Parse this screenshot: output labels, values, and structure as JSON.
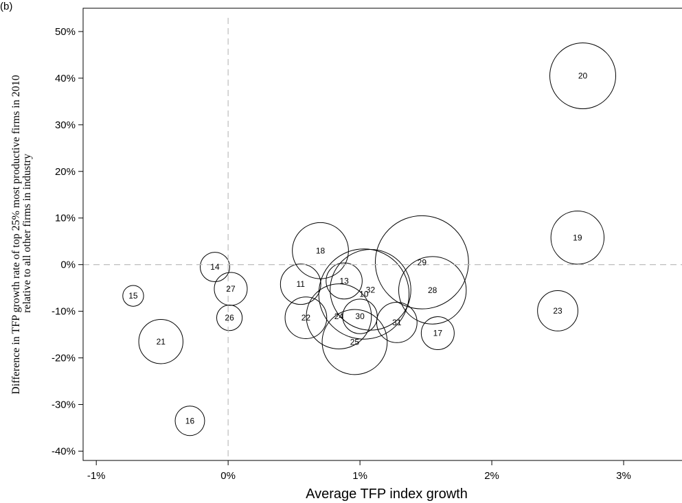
{
  "panel_label": "(b)",
  "chart_data": {
    "type": "scatter",
    "title": "",
    "xlabel": "Average TFP index growth",
    "ylabel_lines": [
      "Difference in TFP growth rate of top 25% most productive firms in 2010",
      "relative to all other firms in industry"
    ],
    "xlim": [
      -1.1,
      3.5
    ],
    "ylim": [
      -42,
      55
    ],
    "x_ticks": [
      -1,
      0,
      1,
      2,
      3
    ],
    "x_tick_labels": [
      "-1%",
      "0%",
      "1%",
      "2%",
      "3%"
    ],
    "y_ticks": [
      -40,
      -30,
      -20,
      -10,
      0,
      10,
      20,
      30,
      40,
      50
    ],
    "y_tick_labels": [
      "-40%",
      "-30%",
      "-20%",
      "-10%",
      "0%",
      "10%",
      "20%",
      "30%",
      "40%",
      "50%"
    ],
    "reference_lines": {
      "x": 0,
      "y": 0,
      "style": "dashed"
    },
    "grid": false,
    "bubble_size_variable_shown": false,
    "points": [
      {
        "label": "10",
        "x": 1.03,
        "y": -6.3,
        "size": 7.5
      },
      {
        "label": "11",
        "x": 0.55,
        "y": -4.2,
        "size": 1.5
      },
      {
        "label": "13",
        "x": 0.88,
        "y": -3.5,
        "size": 1.2
      },
      {
        "label": "14",
        "x": -0.1,
        "y": -0.5,
        "size": 0.8
      },
      {
        "label": "15",
        "x": -0.72,
        "y": -6.7,
        "size": 0.4
      },
      {
        "label": "16",
        "x": -0.29,
        "y": -33.5,
        "size": 0.8
      },
      {
        "label": "17",
        "x": 1.59,
        "y": -14.7,
        "size": 1.0
      },
      {
        "label": "18",
        "x": 0.7,
        "y": 3.0,
        "size": 2.9
      },
      {
        "label": "19",
        "x": 2.65,
        "y": 5.8,
        "size": 2.6
      },
      {
        "label": "20",
        "x": 2.69,
        "y": 40.5,
        "size": 4.0
      },
      {
        "label": "21",
        "x": -0.51,
        "y": -16.5,
        "size": 1.8
      },
      {
        "label": "22",
        "x": 0.59,
        "y": -11.4,
        "size": 1.6
      },
      {
        "label": "23",
        "x": 2.5,
        "y": -9.9,
        "size": 1.5
      },
      {
        "label": "24",
        "x": 0.84,
        "y": -11.1,
        "size": 3.9
      },
      {
        "label": "25",
        "x": 0.96,
        "y": -16.6,
        "size": 3.9
      },
      {
        "label": "26",
        "x": 0.01,
        "y": -11.4,
        "size": 0.6
      },
      {
        "label": "27",
        "x": 0.02,
        "y": -5.2,
        "size": 1.0
      },
      {
        "label": "28",
        "x": 1.55,
        "y": -5.5,
        "size": 4.2
      },
      {
        "label": "29",
        "x": 1.47,
        "y": 0.5,
        "size": 8.0
      },
      {
        "label": "30",
        "x": 1.0,
        "y": -11.1,
        "size": 1.1
      },
      {
        "label": "31",
        "x": 1.28,
        "y": -12.4,
        "size": 1.5
      },
      {
        "label": "32",
        "x": 1.08,
        "y": -5.4,
        "size": 6.0
      }
    ]
  }
}
